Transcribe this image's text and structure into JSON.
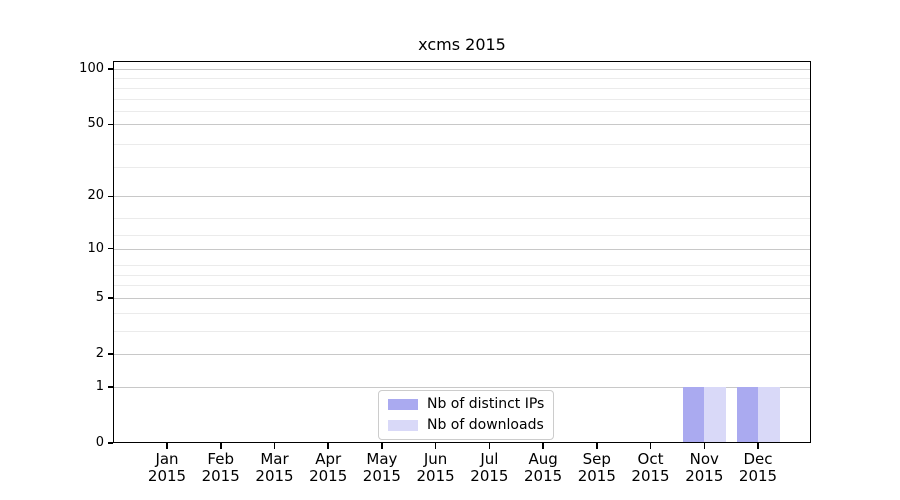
{
  "chart_data": {
    "type": "bar",
    "title": "xcms 2015",
    "categories": [
      "Jan",
      "Feb",
      "Mar",
      "Apr",
      "May",
      "Jun",
      "Jul",
      "Aug",
      "Sep",
      "Oct",
      "Nov",
      "Dec"
    ],
    "year_label": "2015",
    "series": [
      {
        "name": "Nb of distinct IPs",
        "color": "#aaaaf0",
        "values": [
          0,
          0,
          0,
          0,
          0,
          0,
          0,
          0,
          0,
          0,
          1,
          1
        ]
      },
      {
        "name": "Nb of downloads",
        "color": "#d9d9f8",
        "values": [
          0,
          0,
          0,
          0,
          0,
          0,
          0,
          0,
          0,
          0,
          1,
          1
        ]
      }
    ],
    "xlabel": "",
    "ylabel": "",
    "y_scale": "log10(1+y)",
    "y_ticks": [
      0,
      1,
      2,
      5,
      10,
      20,
      50,
      100
    ],
    "y_minor_gridlines": [
      3,
      4,
      6,
      7,
      8,
      12,
      15,
      29,
      39,
      59,
      69,
      79,
      89
    ],
    "ylim": [
      0,
      110
    ],
    "grid": true,
    "legend_position": "inside-bottom-center",
    "colors": {
      "major_grid": "#c8c8c8",
      "minor_grid": "#ebebeb",
      "axis": "#000000",
      "background": "#ffffff",
      "text": "#000000"
    }
  }
}
